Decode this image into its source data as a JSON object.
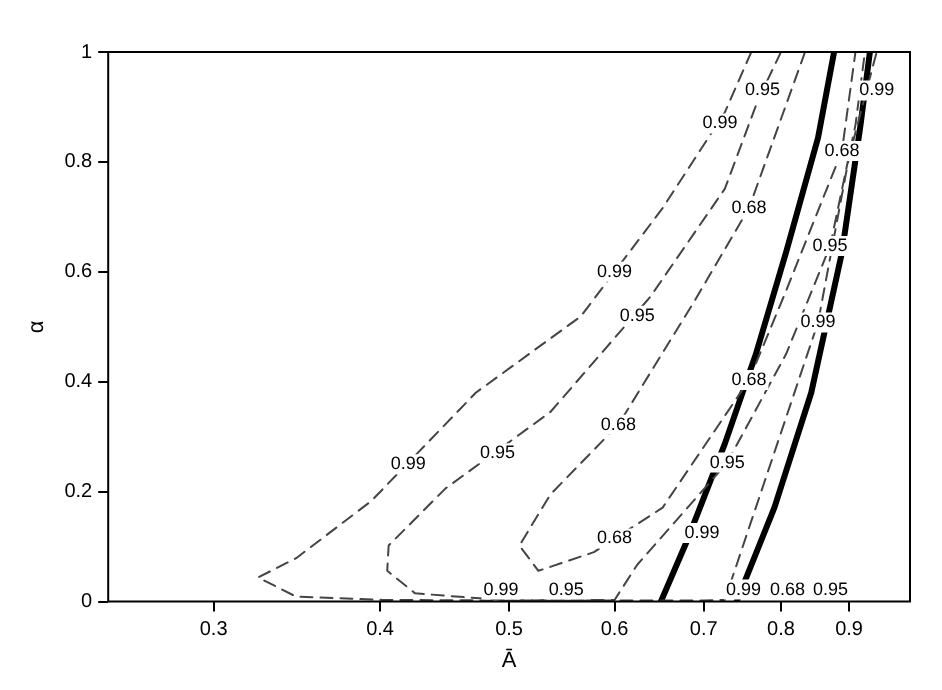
{
  "chart_data": {
    "type": "line",
    "xlabel": "Ā",
    "ylabel": "α",
    "log": "x",
    "xlim": [
      0.25,
      1
    ],
    "ylim": [
      0,
      1
    ],
    "xticks": [
      0.3,
      0.4,
      0.5,
      0.6,
      0.7,
      0.8,
      0.9
    ],
    "yticks": [
      0,
      0.2,
      0.4,
      0.6,
      0.8,
      1
    ],
    "grid": false,
    "legend": false,
    "marker": "none",
    "series": [
      {
        "color": "#444444",
        "line_style": "dashed",
        "x": [
          0.76,
          0.726,
          0.652,
          0.566,
          0.472,
          0.394,
          0.346,
          0.324,
          0.346,
          0.402,
          0.5,
          0.6,
          0.7,
          0.726,
          0.766,
          0.853,
          0.9,
          0.944
        ],
        "values": [
          1,
          0.89,
          0.716,
          0.519,
          0.38,
          0.183,
          0.079,
          0.044,
          0.009,
          0.003,
          0.002,
          0.002,
          0.002,
          0.003,
          0.171,
          0.508,
          0.809,
          1
        ]
      },
      {
        "color": "#444444",
        "line_style": "dashed",
        "x": [
          0.8,
          0.769,
          0.726,
          0.638,
          0.537,
          0.448,
          0.406,
          0.405,
          0.425,
          0.5,
          0.6,
          0.624,
          0.729,
          0.807,
          0.871,
          0.91,
          0.925
        ],
        "values": [
          1,
          0.913,
          0.751,
          0.554,
          0.345,
          0.206,
          0.102,
          0.056,
          0.015,
          0.002,
          0.003,
          0.067,
          0.253,
          0.45,
          0.647,
          0.867,
          1
        ]
      },
      {
        "color": "#444444",
        "line_style": "dashed",
        "x": [
          0.834,
          0.757,
          0.687,
          0.604,
          0.537,
          0.509,
          0.526,
          0.579,
          0.652,
          0.757,
          0.807,
          0.889,
          0.91
        ],
        "values": [
          1,
          0.716,
          0.542,
          0.322,
          0.195,
          0.102,
          0.056,
          0.09,
          0.171,
          0.403,
          0.565,
          0.82,
          1
        ]
      },
      {
        "color": "#000000",
        "line_style": "solid",
        "x": [
          0.65,
          0.681,
          0.726,
          0.766,
          0.807,
          0.853,
          0.877
        ],
        "values": [
          0,
          0.114,
          0.287,
          0.45,
          0.635,
          0.844,
          1
        ]
      },
      {
        "color": "#000000",
        "line_style": "solid",
        "x": [
          0.741,
          0.791,
          0.843,
          0.889,
          0.918,
          0.933
        ],
        "values": [
          0,
          0.171,
          0.38,
          0.635,
          0.867,
          1
        ]
      }
    ],
    "annotations": [
      {
        "text": "0.99",
        "x": 0.72,
        "y": 0.87
      },
      {
        "text": "0.95",
        "x": 0.775,
        "y": 0.93
      },
      {
        "text": "0.68",
        "x": 0.757,
        "y": 0.716
      },
      {
        "text": "0.99",
        "x": 0.6,
        "y": 0.6
      },
      {
        "text": "0.95",
        "x": 0.624,
        "y": 0.52
      },
      {
        "text": "0.99",
        "x": 0.42,
        "y": 0.25
      },
      {
        "text": "0.95",
        "x": 0.49,
        "y": 0.27
      },
      {
        "text": "0.68",
        "x": 0.604,
        "y": 0.322
      },
      {
        "text": "0.68",
        "x": 0.6,
        "y": 0.115
      },
      {
        "text": "0.68",
        "x": 0.757,
        "y": 0.403
      },
      {
        "text": "0.95",
        "x": 0.729,
        "y": 0.253
      },
      {
        "text": "0.99",
        "x": 0.698,
        "y": 0.125
      },
      {
        "text": "0.68",
        "x": 0.889,
        "y": 0.82
      },
      {
        "text": "0.95",
        "x": 0.871,
        "y": 0.647
      },
      {
        "text": "0.99",
        "x": 0.853,
        "y": 0.508
      },
      {
        "text": "0.99",
        "x": 0.944,
        "y": 0.93
      },
      {
        "text": "0.99",
        "x": 0.493,
        "y": 0.004
      },
      {
        "text": "0.95",
        "x": 0.552,
        "y": 0.004
      },
      {
        "text": "0.99",
        "x": 0.75,
        "y": 0.01
      },
      "0.68",
      "0.95"
    ]
  }
}
